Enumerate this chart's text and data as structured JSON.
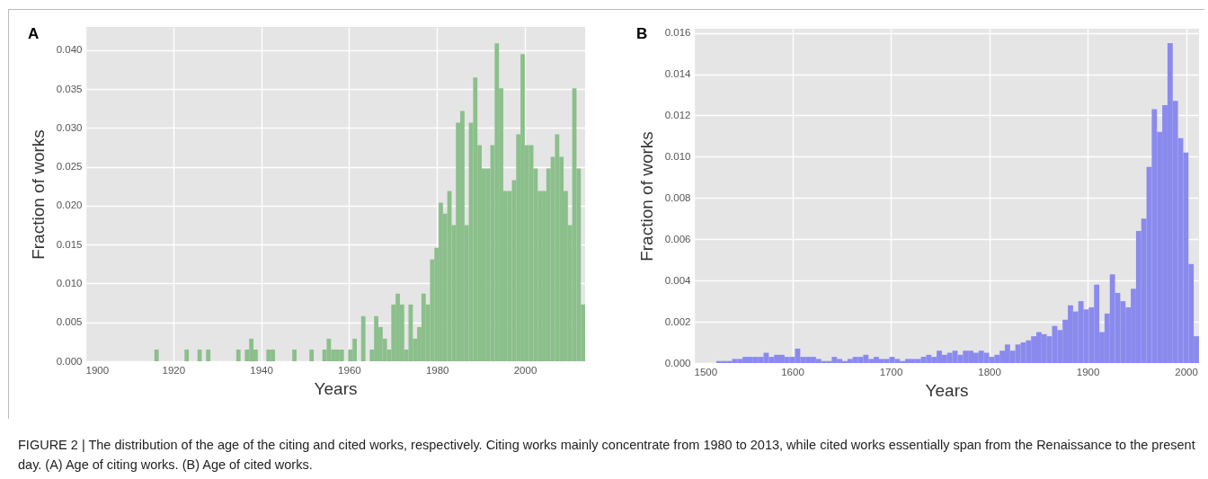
{
  "chart_data": [
    {
      "type": "histogram",
      "xlabel": "Years",
      "ylabel": "Fraction of works",
      "color": "#8bbf8b",
      "grid": true,
      "annotations": [
        "A",
        "FIGURE 2 | The distribution of the age of the citing and cited works, respectively. Citing works mainly concentrate from 1980 to 2013, while cited works essentially span from the Renaissance to the present day. (A) Age of citing works. (B) Age of cited works."
      ],
      "xlim": [
        1900,
        2013.7
      ],
      "ylim": [
        0,
        0.043
      ],
      "xticks": [
        1900,
        1920,
        1940,
        1960,
        1980,
        2000
      ],
      "yticks": [
        {
          "value": 0,
          "label": "0.000"
        },
        0.005,
        {
          "value": 0.01,
          "label": "0.010"
        },
        0.015,
        {
          "value": 0.02,
          "label": "0.020"
        },
        0.025,
        {
          "value": 0.03,
          "label": "0.030"
        },
        0.035,
        {
          "value": 0.04,
          "label": "0.040"
        }
      ],
      "bins": [
        1915.7,
        1916.68,
        1917.66,
        1918.64,
        1919.62,
        1920.6,
        1921.58,
        1922.56,
        1923.54,
        1924.52,
        1925.5,
        1926.48,
        1927.46,
        1928.44,
        1929.42,
        1930.4,
        1931.38,
        1932.36,
        1933.34,
        1934.32,
        1935.3,
        1936.28,
        1937.26,
        1938.24,
        1939.22,
        1940.2,
        1941.18,
        1942.16,
        1943.14,
        1944.12,
        1945.1,
        1946.08,
        1947.06,
        1948.04,
        1949.02,
        1950,
        1950.98,
        1951.96,
        1952.94,
        1953.92,
        1954.9,
        1955.88,
        1956.86,
        1957.84,
        1958.82,
        1959.8,
        1960.78,
        1961.76,
        1962.74,
        1963.72,
        1964.7,
        1965.68,
        1966.66,
        1967.64,
        1968.62,
        1969.6,
        1970.58,
        1971.56,
        1972.54,
        1973.52,
        1974.5,
        1975.48,
        1976.46,
        1977.44,
        1978.42,
        1979.4,
        1980.38,
        1981.36,
        1982.34,
        1983.32,
        1984.3,
        1985.28,
        1986.26,
        1987.24,
        1988.22,
        1989.2,
        1990.18,
        1991.16,
        1992.14,
        1993.12,
        1994.1,
        1995.08,
        1996.06,
        1997.04,
        1998.02,
        1999,
        1999.98,
        2000.96,
        2001.94,
        2002.92,
        2003.9,
        2004.88,
        2005.86,
        2006.84,
        2007.82,
        2008.8,
        2009.78,
        2010.76,
        2011.74,
        2012.72,
        2013.7
      ],
      "values": [
        0.0015,
        0,
        0,
        0,
        0,
        0,
        0,
        0.0015,
        0,
        0,
        0.0015,
        0,
        0.0015,
        0,
        0,
        0,
        0,
        0,
        0,
        0.0015,
        0,
        0.0015,
        0.0029,
        0.0015,
        0,
        0,
        0.0015,
        0.0015,
        0,
        0,
        0,
        0,
        0.0015,
        0,
        0,
        0,
        0.0015,
        0,
        0,
        0.0015,
        0.0029,
        0.0015,
        0.0015,
        0.0015,
        0,
        0.0015,
        0.0029,
        0,
        0.0058,
        0,
        0.0015,
        0.0058,
        0.0044,
        0.0029,
        0.0015,
        0.0073,
        0.0087,
        0.0073,
        0.0015,
        0.0073,
        0.0029,
        0.0044,
        0.0087,
        0.0073,
        0.0131,
        0.0146,
        0.0204,
        0.019,
        0.0219,
        0.0175,
        0.0307,
        0.0322,
        0.0175,
        0.0307,
        0.0365,
        0.0278,
        0.0248,
        0.0248,
        0.0278,
        0.0409,
        0.0351,
        0.0219,
        0.0219,
        0.0233,
        0.0292,
        0.0395,
        0.0278,
        0.0278,
        0.0248,
        0.0219,
        0.0219,
        0.0248,
        0.0263,
        0.0292,
        0.0263,
        0.0219,
        0.0175,
        0.0351,
        0.0248,
        0.0073
      ]
    },
    {
      "type": "histogram",
      "xlabel": "Years",
      "ylabel": "Fraction of works",
      "color": "#8a8aee",
      "grid": true,
      "annotations": [
        "B"
      ],
      "xlim": [
        1500,
        2013.2
      ],
      "ylim": [
        0,
        0.0162
      ],
      "xticks": [
        1500,
        1600,
        1700,
        1800,
        1900,
        2000
      ],
      "yticks": [
        {
          "value": 0,
          "label": "0.000"
        },
        0.002,
        0.004,
        0.006,
        0.008,
        {
          "value": 0.01,
          "label": "0.010"
        },
        0.012,
        0.014,
        0.016
      ],
      "bins": [
        1522.8,
        1528.13,
        1533.46,
        1538.79,
        1544.12,
        1549.45,
        1554.78,
        1560.11,
        1565.44,
        1570.77,
        1576.1,
        1581.43,
        1586.76,
        1592.09,
        1597.42,
        1602.75,
        1608.08,
        1613.41,
        1618.74,
        1624.07,
        1629.4,
        1634.73,
        1640.06,
        1645.39,
        1650.72,
        1656.05,
        1661.38,
        1666.71,
        1672.04,
        1677.37,
        1682.7,
        1688.03,
        1693.36,
        1698.69,
        1704.02,
        1709.35,
        1714.68,
        1720.01,
        1725.34,
        1730.67,
        1736,
        1741.33,
        1746.66,
        1751.99,
        1757.32,
        1762.65,
        1767.98,
        1773.31,
        1778.64,
        1783.97,
        1789.3,
        1794.63,
        1799.96,
        1805.29,
        1810.62,
        1815.95,
        1821.28,
        1826.61,
        1831.94,
        1837.27,
        1842.6,
        1847.93,
        1853.26,
        1858.59,
        1863.92,
        1869.25,
        1874.58,
        1879.91,
        1885.24,
        1890.57,
        1895.9,
        1901.23,
        1906.56,
        1911.89,
        1917.22,
        1922.55,
        1927.88,
        1933.21,
        1938.54,
        1943.87,
        1949.2,
        1954.53,
        1959.86,
        1965.19,
        1970.52,
        1975.85,
        1981.18,
        1986.51,
        1991.84,
        1997.17,
        2002.5,
        2007.83,
        2013.16
      ],
      "values": [
        0.0001,
        0.0001,
        0.0001,
        0.0002,
        0.0002,
        0.0003,
        0.0003,
        0.0003,
        0.0003,
        0.0005,
        0.0003,
        0.0004,
        0.0004,
        0.0003,
        0.0003,
        0.0007,
        0.0003,
        0.0003,
        0.0003,
        0.0002,
        0.0001,
        0.0001,
        0.0003,
        0.0002,
        0.0001,
        0.0002,
        0.0003,
        0.0003,
        0.0004,
        0.0002,
        0.0003,
        0.0002,
        0.0002,
        0.0003,
        0.0002,
        0.0001,
        0.0002,
        0.0002,
        0.0002,
        0.0003,
        0.0004,
        0.0003,
        0.0006,
        0.0004,
        0.0005,
        0.0006,
        0.0004,
        0.0006,
        0.0006,
        0.0005,
        0.0006,
        0.0005,
        0.0003,
        0.0004,
        0.0006,
        0.0009,
        0.0006,
        0.0009,
        0.001,
        0.0011,
        0.0013,
        0.0015,
        0.0014,
        0.0013,
        0.0018,
        0.0016,
        0.0021,
        0.0028,
        0.0025,
        0.003,
        0.0026,
        0.0027,
        0.0038,
        0.0015,
        0.0024,
        0.0043,
        0.0034,
        0.003,
        0.0027,
        0.0036,
        0.0064,
        0.007,
        0.0095,
        0.0123,
        0.0112,
        0.0125,
        0.0155,
        0.0127,
        0.0109,
        0.0102,
        0.0048,
        0.0013
      ]
    }
  ]
}
